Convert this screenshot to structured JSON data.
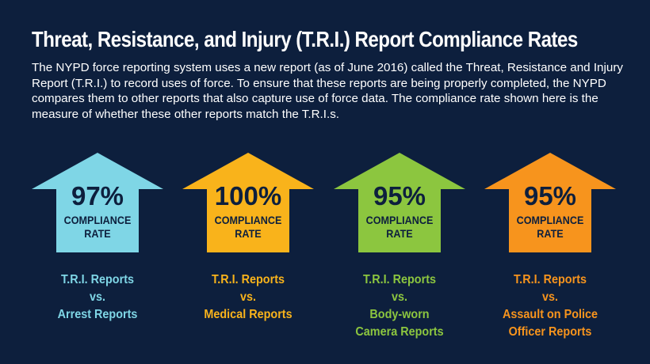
{
  "title": "Threat, Resistance, and Injury (T.R.I.) Report Compliance Rates",
  "intro": "The NYPD force reporting system uses a new report (as of June 2016) called the Threat, Resistance and Injury Report (T.R.I.) to record uses of force.  To ensure that these reports are being properly completed, the NYPD compares them to other reports that also capture use of force data. The compliance rate shown here is the measure of whether these other reports match the T.R.I.s.",
  "cards": [
    {
      "rate": "97%",
      "label_line1": "COMPLIANCE",
      "label_line2": "RATE",
      "value": 97,
      "color": "#7fd6e6",
      "caption": [
        "T.R.I. Reports",
        "vs.",
        "Arrest Reports"
      ]
    },
    {
      "rate": "100%",
      "label_line1": "COMPLIANCE",
      "label_line2": "RATE",
      "value": 100,
      "color": "#f9b31b",
      "caption": [
        "T.R.I. Reports",
        "vs.",
        "Medical Reports"
      ]
    },
    {
      "rate": "95%",
      "label_line1": "COMPLIANCE",
      "label_line2": "RATE",
      "value": 95,
      "color": "#8cc63f",
      "caption": [
        "T.R.I. Reports",
        "vs.",
        "Body-worn",
        "Camera Reports"
      ]
    },
    {
      "rate": "95%",
      "label_line1": "COMPLIANCE",
      "label_line2": "RATE",
      "value": 95,
      "color": "#f7941d",
      "caption": [
        "T.R.I. Reports",
        "vs.",
        "Assault on Police",
        "Officer Reports"
      ]
    }
  ]
}
